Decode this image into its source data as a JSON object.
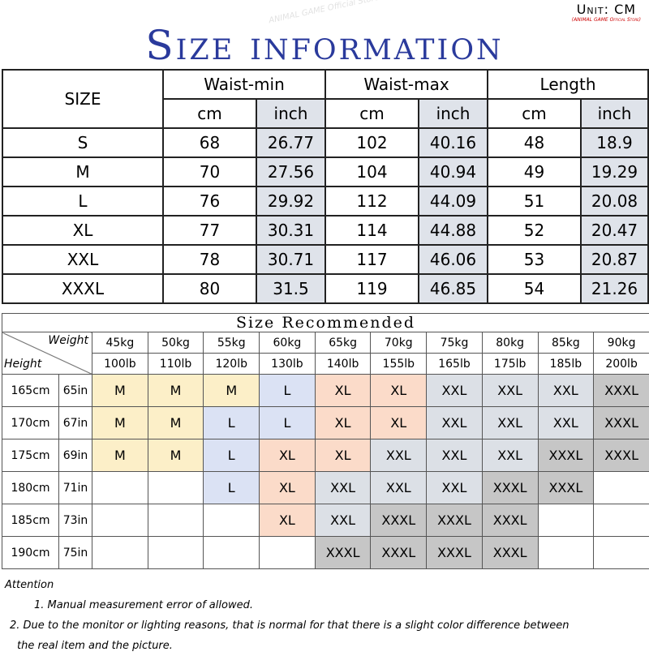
{
  "unit": {
    "label": "Unit: CM",
    "store": "(ANIMAL GAME Official Store)"
  },
  "title": "Size information",
  "watermark": "ANIMAL GAME Official Store",
  "size_table": {
    "header": "SIZE",
    "groups": [
      "Waist-min",
      "Waist-max",
      "Length"
    ],
    "units": [
      "cm",
      "inch",
      "cm",
      "inch",
      "cm",
      "inch"
    ],
    "rows": [
      [
        "S",
        "68",
        "26.77",
        "102",
        "40.16",
        "48",
        "18.9"
      ],
      [
        "M",
        "70",
        "27.56",
        "104",
        "40.94",
        "49",
        "19.29"
      ],
      [
        "L",
        "76",
        "29.92",
        "112",
        "44.09",
        "51",
        "20.08"
      ],
      [
        "XL",
        "77",
        "30.31",
        "114",
        "44.88",
        "52",
        "20.47"
      ],
      [
        "XXL",
        "78",
        "30.71",
        "117",
        "46.06",
        "53",
        "20.87"
      ],
      [
        "XXXL",
        "80",
        "31.5",
        "119",
        "46.85",
        "54",
        "21.26"
      ]
    ]
  },
  "recommend": {
    "title": "Size Recommended",
    "weight_label": "Weight",
    "height_label": "Height",
    "weights_kg": [
      "45kg",
      "50kg",
      "55kg",
      "60kg",
      "65kg",
      "70kg",
      "75kg",
      "80kg",
      "85kg",
      "90kg"
    ],
    "weights_lb": [
      "100lb",
      "110lb",
      "120lb",
      "130lb",
      "140lb",
      "155lb",
      "165lb",
      "175lb",
      "185lb",
      "200lb"
    ],
    "heights": [
      [
        "165cm",
        "65in"
      ],
      [
        "170cm",
        "67in"
      ],
      [
        "175cm",
        "69in"
      ],
      [
        "180cm",
        "71in"
      ],
      [
        "185cm",
        "73in"
      ],
      [
        "190cm",
        "75in"
      ]
    ],
    "cells": [
      [
        "M",
        "M",
        "M",
        "L",
        "XL",
        "XL",
        "XXL",
        "XXL",
        "XXL",
        "XXXL"
      ],
      [
        "M",
        "M",
        "L",
        "L",
        "XL",
        "XL",
        "XXL",
        "XXL",
        "XXL",
        "XXXL"
      ],
      [
        "M",
        "M",
        "L",
        "XL",
        "XL",
        "XXL",
        "XXL",
        "XXL",
        "XXXL",
        "XXXL"
      ],
      [
        null,
        null,
        "L",
        "XL",
        "XXL",
        "XXL",
        "XXL",
        "XXXL",
        "XXXL",
        null
      ],
      [
        null,
        null,
        null,
        "XL",
        "XXL",
        "XXXL",
        "XXXL",
        "XXXL",
        null,
        null
      ],
      [
        null,
        null,
        null,
        null,
        "XXXL",
        "XXXL",
        "XXXL",
        "XXXL",
        null,
        null
      ]
    ],
    "size_colors": {
      "M": "#fcefc8",
      "L": "#dbe2f4",
      "XL": "#fbdbc9",
      "XXL": "#dce0e6",
      "XXXL": "#c6c6c6"
    }
  },
  "attention": {
    "title": "Attention",
    "notes": [
      "1. Manual measurement error of allowed.",
      "2.  Due to the monitor or lighting reasons, that is normal for that there is a slight color difference between the real item and the picture."
    ]
  }
}
